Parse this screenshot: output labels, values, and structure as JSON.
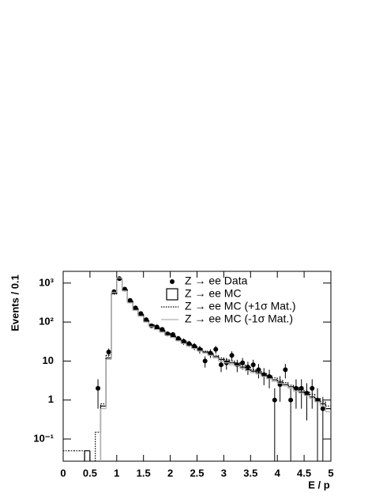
{
  "chart_data": {
    "type": "histogram",
    "xlabel": "E / p",
    "ylabel": "Events / 0.1",
    "ylog": true,
    "xlim": [
      0,
      5
    ],
    "xticks": [
      0,
      0.5,
      1,
      1.5,
      2,
      2.5,
      3,
      3.5,
      4,
      4.5,
      5
    ],
    "ylim": [
      0.027,
      2000
    ],
    "yticks": [
      {
        "value": 0.1,
        "label": "10⁻¹"
      },
      1,
      10,
      {
        "value": 100,
        "label": "10²"
      },
      {
        "value": 1000,
        "label": "10³"
      }
    ],
    "bins": [
      0,
      0.1,
      0.2,
      0.3,
      0.4,
      0.5,
      0.6,
      0.7,
      0.8,
      0.9,
      1,
      1.1,
      1.2,
      1.3,
      1.4,
      1.5,
      1.6,
      1.7,
      1.8,
      1.9,
      2,
      2.1,
      2.2,
      2.3,
      2.4,
      2.5,
      2.6,
      2.7,
      2.8,
      2.9,
      3,
      3.1,
      3.2,
      3.3,
      3.4,
      3.5,
      3.6,
      3.7,
      3.8,
      3.9,
      4,
      4.1,
      4.2,
      4.3,
      4.4,
      4.5,
      4.6,
      4.7,
      4.8,
      4.9,
      5
    ],
    "series": [
      {
        "name": "Z → ee Data",
        "style": "points",
        "color": "#000000",
        "values": [
          null,
          null,
          null,
          null,
          null,
          null,
          2,
          null,
          17,
          600,
          1300,
          700,
          360,
          230,
          165,
          115,
          80,
          75,
          65,
          50,
          48,
          38,
          32,
          28,
          24,
          20,
          10,
          16,
          20,
          8,
          9,
          14,
          8,
          9,
          7,
          8,
          6,
          4.5,
          4,
          1,
          2.5,
          6,
          1,
          2,
          2,
          1.5,
          2,
          1,
          0.6,
          null
        ],
        "errors": [
          null,
          null,
          null,
          null,
          null,
          null,
          1.4,
          null,
          4,
          25,
          36,
          26,
          19,
          15,
          13,
          11,
          9,
          9,
          8,
          7,
          7,
          6,
          6,
          5,
          5,
          4.5,
          3.2,
          4,
          4.5,
          2.8,
          3,
          3.7,
          2.8,
          3,
          2.6,
          2.8,
          2.4,
          2.1,
          2,
          1,
          1.6,
          2.4,
          1,
          1.4,
          1.4,
          1.2,
          1.4,
          1,
          0.6,
          null
        ]
      },
      {
        "name": "Z → ee  MC",
        "style": "solid",
        "color": "#000000",
        "values": [
          null,
          null,
          null,
          null,
          0.05,
          null,
          null,
          0.7,
          12,
          550,
          1300,
          650,
          330,
          210,
          150,
          105,
          80,
          68,
          58,
          48,
          42,
          35,
          30,
          26,
          22,
          19,
          17,
          15,
          13,
          11,
          10,
          9,
          8,
          7,
          6,
          5.5,
          5,
          4.3,
          3.8,
          3.3,
          2.9,
          2.5,
          2.2,
          1.9,
          1.6,
          1.4,
          1.2,
          1,
          0.8,
          0.6
        ]
      },
      {
        "name": "Z → ee  MC (+1σ Mat.)",
        "style": "dotted",
        "color": "#000000",
        "values": [
          0.05,
          0.05,
          0.05,
          0.05,
          null,
          null,
          0.15,
          0.8,
          14,
          520,
          1250,
          680,
          350,
          225,
          160,
          112,
          86,
          73,
          62,
          52,
          45,
          38,
          33,
          28,
          24,
          21,
          18,
          16,
          14,
          12,
          11,
          10,
          9,
          8,
          7,
          6,
          5.5,
          4.8,
          4.2,
          3.7,
          3.2,
          2.8,
          2.4,
          2.1,
          1.8,
          1.6,
          1.4,
          1.1,
          0.9,
          0.7
        ]
      },
      {
        "name": "Z → ee  MC (-1σ Mat.)",
        "style": "light",
        "color": "#b0b0b0",
        "values": [
          null,
          null,
          null,
          null,
          null,
          null,
          null,
          0.6,
          11,
          580,
          1350,
          630,
          310,
          200,
          140,
          100,
          76,
          64,
          55,
          45,
          40,
          33,
          28,
          24,
          21,
          18,
          16,
          14,
          12,
          10,
          9,
          8,
          7.5,
          6.5,
          5.6,
          5,
          4.6,
          4,
          3.5,
          3,
          2.7,
          2.3,
          2,
          1.7,
          1.5,
          1.3,
          1.1,
          0.9,
          0.7,
          0.5
        ]
      }
    ]
  }
}
